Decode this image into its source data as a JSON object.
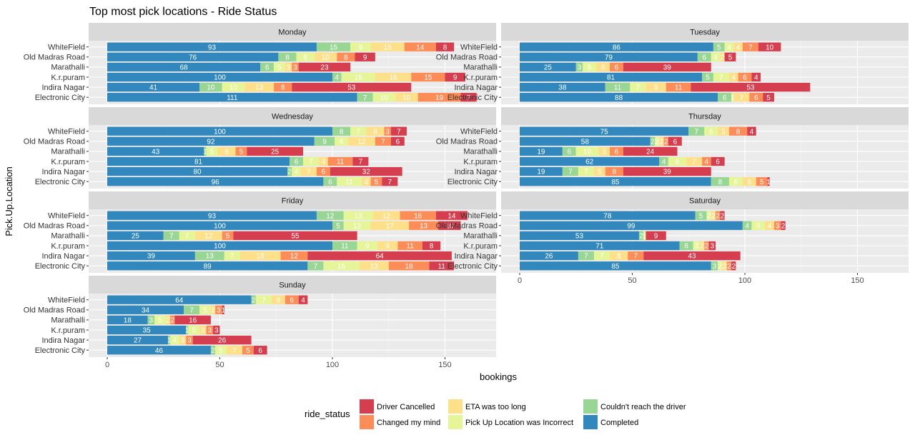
{
  "chart_data": {
    "type": "bar",
    "orientation": "horizontal",
    "stacked": true,
    "title": "Top most pick locations - Ride Status",
    "xlabel": "bookings",
    "ylabel": "Pick.Up.Location",
    "xlim": [
      0,
      172
    ],
    "xticks": [
      "0",
      "50",
      "100",
      "150"
    ],
    "grid": true,
    "legend": {
      "title": "ride_status",
      "position": "bottom",
      "entries": [
        {
          "label": "Driver Cancelled",
          "color": "#D53E4F"
        },
        {
          "label": "Changed my mind",
          "color": "#FC8D59"
        },
        {
          "label": "ETA was too long",
          "color": "#FEE08B"
        },
        {
          "label": "Pick Up Location was Incorrect",
          "color": "#E6F598"
        },
        {
          "label": "Couldn't reach the driver",
          "color": "#99D594"
        },
        {
          "label": "Completed",
          "color": "#3288BD"
        }
      ]
    },
    "stack_order": [
      "Completed",
      "Couldn't reach the driver",
      "Pick Up Location was Incorrect",
      "ETA was too long",
      "Changed my mind",
      "Driver Cancelled"
    ],
    "categories": [
      "WhiteField",
      "Old Madras Road",
      "Marathalli",
      "K.r.puram",
      "Indira Nagar",
      "Electronic City"
    ],
    "panels": [
      {
        "name": "Monday",
        "rows": [
          [
            93,
            15,
            9,
            15,
            14,
            8
          ],
          [
            76,
            8,
            8,
            10,
            8,
            9
          ],
          [
            68,
            6,
            5,
            3,
            3,
            23
          ],
          [
            100,
            4,
            15,
            16,
            15,
            9
          ],
          [
            41,
            10,
            10,
            13,
            8,
            53
          ],
          [
            111,
            7,
            10,
            10,
            19,
            7
          ]
        ]
      },
      {
        "name": "Tuesday",
        "rows": [
          [
            86,
            5,
            4,
            4,
            7,
            10
          ],
          [
            79,
            6,
            4,
            2,
            0,
            5
          ],
          [
            25,
            3,
            6,
            6,
            6,
            39
          ],
          [
            81,
            5,
            7,
            4,
            6,
            4
          ],
          [
            38,
            11,
            7,
            9,
            11,
            53
          ],
          [
            88,
            6,
            1,
            7,
            6,
            5
          ]
        ]
      },
      {
        "name": "Wednesday",
        "rows": [
          [
            100,
            8,
            7,
            8,
            3,
            7
          ],
          [
            92,
            9,
            6,
            12,
            7,
            6
          ],
          [
            43,
            1,
            5,
            8,
            5,
            25
          ],
          [
            81,
            6,
            7,
            4,
            11,
            7
          ],
          [
            80,
            2,
            4,
            7,
            6,
            32
          ],
          [
            96,
            6,
            11,
            4,
            5,
            7
          ]
        ]
      },
      {
        "name": "Thursday",
        "rows": [
          [
            75,
            7,
            6,
            5,
            8,
            4
          ],
          [
            58,
            2,
            2,
            2,
            2,
            6
          ],
          [
            19,
            6,
            10,
            5,
            6,
            24
          ],
          [
            62,
            4,
            8,
            7,
            4,
            6
          ],
          [
            19,
            7,
            7,
            5,
            8,
            39
          ],
          [
            85,
            8,
            6,
            6,
            5,
            1
          ]
        ]
      },
      {
        "name": "Friday",
        "rows": [
          [
            93,
            12,
            13,
            12,
            16,
            14
          ],
          [
            100,
            5,
            12,
            17,
            13,
            10
          ],
          [
            25,
            7,
            7,
            12,
            5,
            55
          ],
          [
            100,
            11,
            9,
            9,
            11,
            8
          ],
          [
            39,
            13,
            7,
            18,
            12,
            64
          ],
          [
            89,
            7,
            16,
            13,
            18,
            11
          ]
        ]
      },
      {
        "name": "Saturday",
        "rows": [
          [
            78,
            5,
            2,
            2,
            2,
            2
          ],
          [
            99,
            4,
            6,
            4,
            3,
            2
          ],
          [
            53,
            2,
            1,
            0,
            0,
            9
          ],
          [
            71,
            6,
            3,
            2,
            2,
            3
          ],
          [
            26,
            7,
            7,
            8,
            7,
            43
          ],
          [
            85,
            3,
            2,
            2,
            2,
            2
          ]
        ]
      },
      {
        "name": "Sunday",
        "rows": [
          [
            64,
            2,
            7,
            6,
            6,
            4
          ],
          [
            34,
            7,
            5,
            2,
            3,
            1
          ],
          [
            18,
            3,
            5,
            2,
            2,
            16
          ],
          [
            35,
            1,
            5,
            3,
            3,
            3
          ],
          [
            27,
            1,
            4,
            3,
            3,
            26
          ],
          [
            46,
            2,
            5,
            7,
            5,
            6
          ]
        ]
      }
    ]
  }
}
